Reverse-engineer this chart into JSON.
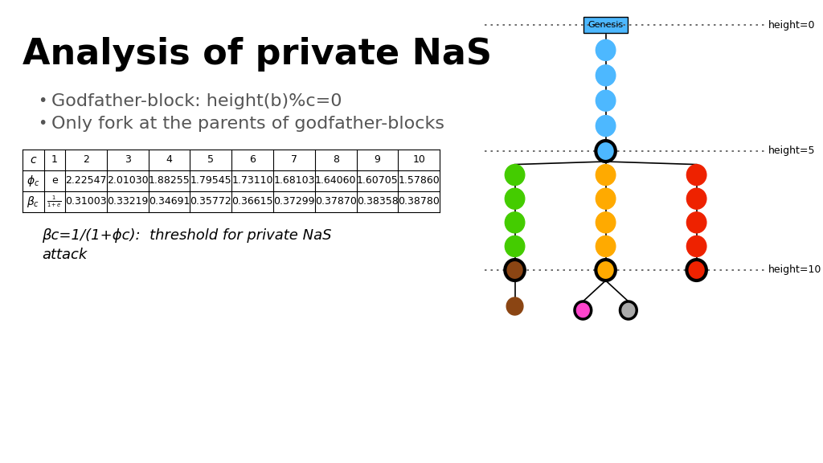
{
  "title": "Analysis of private NaS",
  "bullet1": "Godfather-block: height(b)%c=0",
  "bullet2": "Only fork at the parents of godfather-blocks",
  "table_header": [
    "c",
    "1",
    "2",
    "3",
    "4",
    "5",
    "6",
    "7",
    "8",
    "9",
    "10"
  ],
  "phi_row_label": "ϕc",
  "phi_row_val1": "e",
  "phi_row_vals": [
    "2.22547",
    "2.01030",
    "1.88255",
    "1.79545",
    "1.73110",
    "1.68103",
    "1.64060",
    "1.60705",
    "1.57860"
  ],
  "beta_row_label": "βc",
  "beta_row_val1": "1/(1+e)",
  "beta_row_vals": [
    "0.31003",
    "0.33219",
    "0.34691",
    "0.35772",
    "0.36615",
    "0.37299",
    "0.37870",
    "0.38358",
    "0.38780"
  ],
  "caption_line1": "βc=1/(1+ϕc):  threshold for private NaS",
  "caption_line2": "attack",
  "bg_color": "#ffffff",
  "title_color": "#000000",
  "bullet_color": "#555555",
  "table_text_color": "#000000",
  "genesis_box_color": "#4db8ff",
  "genesis_text_color": "#000000",
  "node_blue": "#4db8ff",
  "node_green": "#44cc00",
  "node_orange": "#ffaa00",
  "node_red": "#ee2200",
  "node_brown": "#8B4513",
  "node_pink": "#ff44cc",
  "node_gray": "#aaaaaa",
  "dotted_line_color": "#555555",
  "height0_label": "height=0",
  "height5_label": "height=5",
  "height10_label": "height=10"
}
